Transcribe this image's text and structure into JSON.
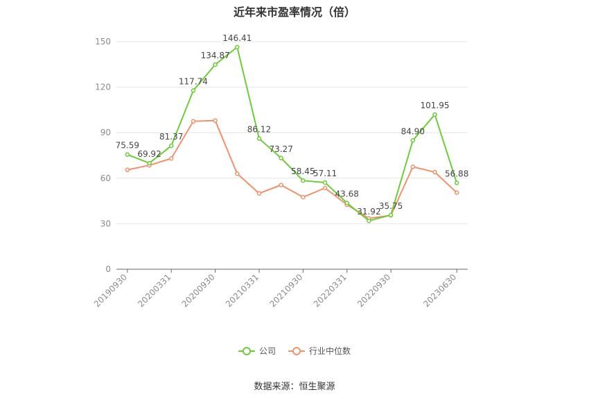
{
  "title": "近年来市盈率情况（倍）",
  "source": "数据来源：恒生聚源",
  "legend": {
    "company": "公司",
    "industry": "行业中位数"
  },
  "colors": {
    "company": "#6ccc38",
    "industry": "#f0916a"
  },
  "chart_data": {
    "type": "line",
    "title": "近年来市盈率情况（倍）",
    "ylim": [
      0,
      150
    ],
    "yticks": [
      0,
      30,
      60,
      90,
      120,
      150
    ],
    "grid": true,
    "legend_position": "bottom",
    "x_tick_labels": [
      "20190930",
      "20200331",
      "20200930",
      "20210331",
      "20210930",
      "20220331",
      "20220930",
      "20230630"
    ],
    "x": [
      "20190930",
      "20191231",
      "20200331",
      "20200630",
      "20200930",
      "20201231",
      "20210331",
      "20210630",
      "20210930",
      "20211231",
      "20220331",
      "20220630",
      "20220930",
      "20221231",
      "20230331",
      "20230630"
    ],
    "series": [
      {
        "name": "公司",
        "values": [
          75.59,
          69.92,
          81.37,
          117.74,
          134.87,
          146.41,
          86.12,
          73.27,
          58.45,
          57.11,
          43.68,
          31.92,
          35.75,
          84.9,
          101.95,
          56.88
        ],
        "labels": [
          "75.59",
          "69.92",
          "81.37",
          "117.74",
          "134.87",
          "146.41",
          "86.12",
          "73.27",
          "58.45",
          "57.11",
          "43.68",
          "31.92",
          "35.75",
          "84.90",
          "101.95",
          "56.88"
        ]
      },
      {
        "name": "行业中位数",
        "values": [
          65.5,
          68.5,
          73,
          97.5,
          98,
          63,
          50,
          55.5,
          47.5,
          53.5,
          42.5,
          33.5,
          35.5,
          67.5,
          64,
          50.5
        ]
      }
    ]
  }
}
